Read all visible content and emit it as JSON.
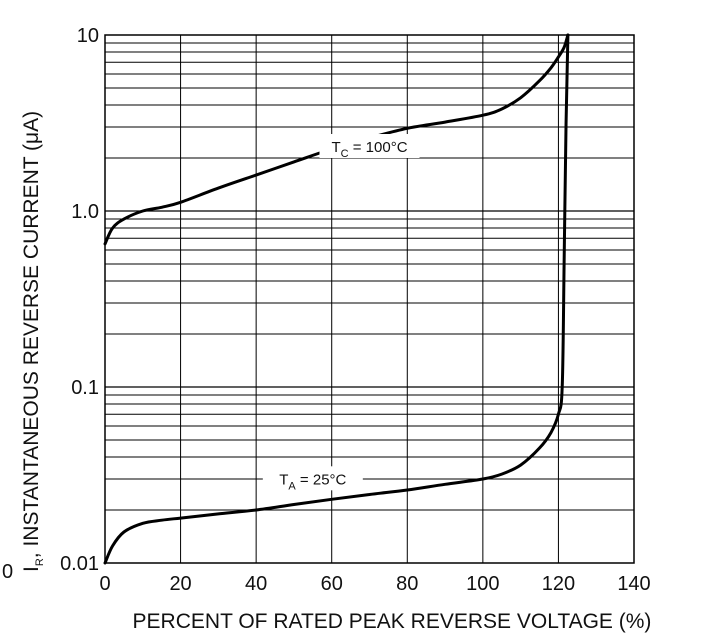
{
  "chart_data": {
    "type": "line",
    "title": "",
    "xlabel": "PERCENT OF RATED  PEAK REVERSE VOLTAGE (%)",
    "ylabel": {
      "symbol": "I",
      "subscript": "R",
      "text": ", INSTANTANEOUS REVERSE CURRENT (μA)"
    },
    "x_ticks": [
      "0",
      "20",
      "40",
      "60",
      "80",
      "100",
      "120",
      "140"
    ],
    "y_ticks": [
      "0.01",
      "0.1",
      "1.0",
      "10"
    ],
    "y_scale": "log",
    "xlim": [
      0,
      140
    ],
    "ylim": [
      0.01,
      10
    ],
    "grid": true,
    "series": [
      {
        "label_main": "T",
        "label_sub": "C",
        "label_rest": " = 100°C",
        "x": [
          0,
          2,
          5,
          10,
          15,
          20,
          30,
          40,
          50,
          60,
          70,
          80,
          90,
          100,
          105,
          110,
          115,
          118,
          120,
          121.5,
          122.5
        ],
        "y": [
          0.65,
          0.8,
          0.9,
          1.0,
          1.05,
          1.12,
          1.35,
          1.6,
          1.9,
          2.25,
          2.6,
          2.95,
          3.2,
          3.5,
          3.8,
          4.4,
          5.5,
          6.5,
          7.5,
          8.5,
          10
        ]
      },
      {
        "label_main": "T",
        "label_sub": "A",
        "label_rest": " = 25°C",
        "x": [
          0,
          2,
          5,
          10,
          15,
          20,
          30,
          40,
          50,
          60,
          70,
          80,
          90,
          100,
          105,
          110,
          115,
          118,
          120,
          121,
          121.5,
          122,
          122.5
        ],
        "y": [
          0.01,
          0.0125,
          0.015,
          0.0168,
          0.0175,
          0.018,
          0.019,
          0.02,
          0.0215,
          0.023,
          0.0245,
          0.026,
          0.028,
          0.03,
          0.032,
          0.036,
          0.045,
          0.055,
          0.07,
          0.1,
          0.5,
          3,
          10
        ]
      }
    ]
  }
}
